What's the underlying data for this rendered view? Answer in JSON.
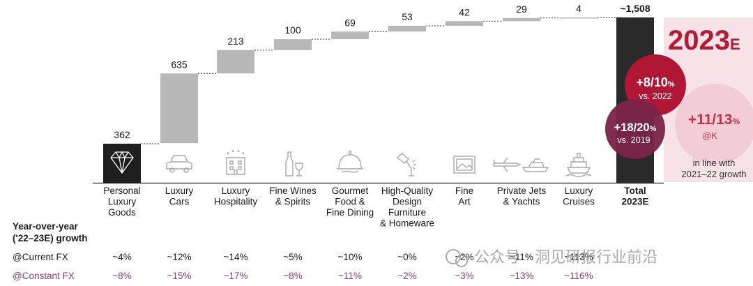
{
  "chart_data": {
    "type": "waterfall",
    "categories": [
      [
        "Personal",
        "Luxury",
        "Goods"
      ],
      [
        "Luxury",
        "Cars"
      ],
      [
        "Luxury",
        "Hospitality"
      ],
      [
        "Fine Wines",
        "& Spirits"
      ],
      [
        "Gourmet",
        "Food &",
        "Fine Dining"
      ],
      [
        "High-Quality",
        "Design",
        "Furniture",
        "& Homeware"
      ],
      [
        "Fine",
        "Art"
      ],
      [
        "Private Jets",
        "& Yachts"
      ],
      [
        "Luxury",
        "Cruises"
      ]
    ],
    "values": [
      362,
      635,
      213,
      100,
      69,
      53,
      42,
      29,
      4
    ],
    "value_labels": [
      "362",
      "635",
      "213",
      "100",
      "69",
      "53",
      "42",
      "29",
      "4"
    ],
    "total": {
      "label": [
        "Total",
        "2023E"
      ],
      "value": 1508,
      "value_label": "~1,508"
    },
    "icons": [
      "diamond-icon",
      "car-icon",
      "hotel-icon",
      "wine-icon",
      "cloche-icon",
      "lamp-icon",
      "art-frame-icon",
      "jet-yacht-icon",
      "cruise-ship-icon"
    ],
    "growth_header": [
      "Year-over-year",
      "('22–23E) growth"
    ],
    "current_fx_label": "@Current FX",
    "constant_fx_label": "@Constant FX",
    "current_fx": [
      "~4%",
      "~12%",
      "~14%",
      "~5%",
      "~10%",
      "~0%",
      "~2%",
      "~11%",
      "~113%"
    ],
    "constant_fx": [
      "~8%",
      "~15%",
      "~17%",
      "~8%",
      "~11%",
      "~2%",
      "~3%",
      "~13%",
      "~116%"
    ],
    "ylim": [
      0,
      1508
    ],
    "colors": {
      "bar": "#b8b8b8",
      "first": "#1e1e1e",
      "total": "#2a2a2a",
      "accent": "#b31b34",
      "constant": "#8a3e6e"
    }
  },
  "panel": {
    "year": "2023",
    "year_suffix": "E",
    "bubble1": {
      "main": "+8/10",
      "pct": "%",
      "sub": "vs. 2022"
    },
    "bubble2": {
      "main": "+18/20",
      "pct": "%",
      "sub": "vs. 2019"
    },
    "bubble3": {
      "main": "+11/13",
      "pct": "%",
      "sub": "@K"
    },
    "note": [
      "in line with",
      "2021–22 growth"
    ]
  },
  "watermark": "公众号 · 洞见研报行业前沿"
}
